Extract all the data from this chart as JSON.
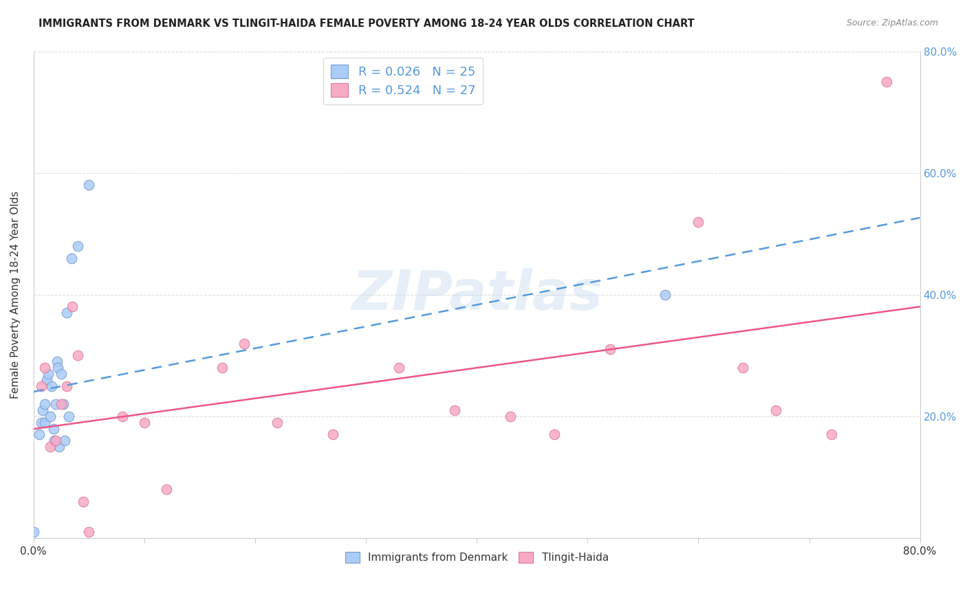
{
  "title": "IMMIGRANTS FROM DENMARK VS TLINGIT-HAIDA FEMALE POVERTY AMONG 18-24 YEAR OLDS CORRELATION CHART",
  "source": "Source: ZipAtlas.com",
  "ylabel": "Female Poverty Among 18-24 Year Olds",
  "xlim": [
    0.0,
    0.8
  ],
  "ylim": [
    0.0,
    0.8
  ],
  "xtick_vals": [
    0.0,
    0.1,
    0.2,
    0.3,
    0.4,
    0.5,
    0.6,
    0.7,
    0.8
  ],
  "xtick_show": [
    0.0,
    0.8
  ],
  "ytick_vals": [
    0.0,
    0.2,
    0.4,
    0.6,
    0.8
  ],
  "right_ytick_vals": [
    0.2,
    0.4,
    0.6,
    0.8
  ],
  "denmark_R": 0.026,
  "denmark_N": 25,
  "tlingit_R": 0.524,
  "tlingit_N": 27,
  "denmark_color": "#aaccf8",
  "tlingit_color": "#f8aac4",
  "denmark_edge": "#7799cc",
  "tlingit_edge": "#dd7799",
  "trend_denmark_color": "#5599dd",
  "trend_tlingit_color": "#ee5588",
  "denmark_x": [
    0.0,
    0.005,
    0.007,
    0.008,
    0.01,
    0.01,
    0.012,
    0.013,
    0.015,
    0.016,
    0.018,
    0.019,
    0.02,
    0.021,
    0.022,
    0.023,
    0.025,
    0.027,
    0.028,
    0.03,
    0.032,
    0.034,
    0.04,
    0.05,
    0.57
  ],
  "denmark_y": [
    0.01,
    0.17,
    0.19,
    0.21,
    0.19,
    0.22,
    0.26,
    0.27,
    0.2,
    0.25,
    0.18,
    0.16,
    0.22,
    0.29,
    0.28,
    0.15,
    0.27,
    0.22,
    0.16,
    0.37,
    0.2,
    0.46,
    0.48,
    0.58,
    0.4
  ],
  "tlingit_x": [
    0.007,
    0.01,
    0.015,
    0.02,
    0.025,
    0.03,
    0.035,
    0.04,
    0.045,
    0.05,
    0.08,
    0.1,
    0.12,
    0.17,
    0.19,
    0.22,
    0.27,
    0.33,
    0.38,
    0.43,
    0.47,
    0.52,
    0.6,
    0.64,
    0.67,
    0.72,
    0.77
  ],
  "tlingit_y": [
    0.25,
    0.28,
    0.15,
    0.16,
    0.22,
    0.25,
    0.38,
    0.3,
    0.06,
    0.01,
    0.2,
    0.19,
    0.08,
    0.28,
    0.32,
    0.19,
    0.17,
    0.28,
    0.21,
    0.2,
    0.17,
    0.31,
    0.52,
    0.28,
    0.21,
    0.17,
    0.75
  ],
  "watermark_text": "ZIPatlas",
  "marker_size": 110,
  "background_color": "#ffffff",
  "grid_color": "#dddddd",
  "right_label_color": "#5599dd",
  "legend_label_color": "#5599dd",
  "axis_color": "#cccccc",
  "text_color": "#333333",
  "title_color": "#222222",
  "source_color": "#888888"
}
